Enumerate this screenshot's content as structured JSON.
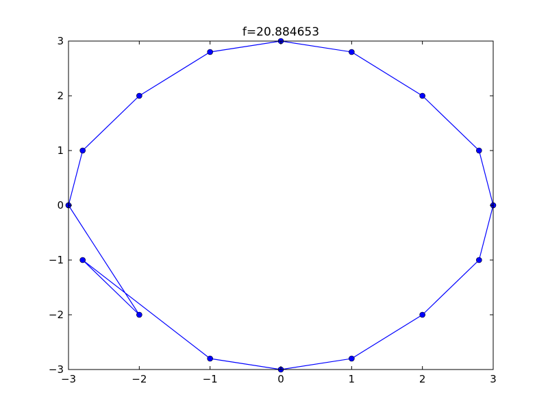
{
  "chart_data": {
    "type": "line",
    "title": "f=20.884653",
    "xlabel": "",
    "ylabel": "",
    "xlim": [
      -3,
      3
    ],
    "ylim": [
      -3,
      3
    ],
    "xticks": [
      -3,
      -2,
      -1,
      0,
      1,
      2,
      3
    ],
    "yticks": [
      -3,
      -2,
      -1,
      0,
      1,
      2,
      3
    ],
    "xtick_labels": [
      "−3",
      "−2",
      "−1",
      "0",
      "1",
      "2",
      "3"
    ],
    "ytick_labels": [
      "−3",
      "−2",
      "−1",
      "0",
      "1",
      "2",
      "3"
    ],
    "grid": false,
    "series": [
      {
        "color": "#0000ff",
        "marker": "circle",
        "points": [
          [
            -3,
            0
          ],
          [
            -2.8,
            1
          ],
          [
            -2,
            2
          ],
          [
            -1,
            2.8
          ],
          [
            0,
            3
          ],
          [
            1,
            2.8
          ],
          [
            2,
            2
          ],
          [
            2.8,
            1
          ],
          [
            3,
            0
          ],
          [
            2.8,
            -1
          ],
          [
            2,
            -2
          ],
          [
            1,
            -2.8
          ],
          [
            0,
            -3
          ],
          [
            -1,
            -2.8
          ],
          [
            -2.8,
            -1
          ],
          [
            -2,
            -2
          ],
          [
            -3,
            0
          ]
        ]
      }
    ]
  }
}
